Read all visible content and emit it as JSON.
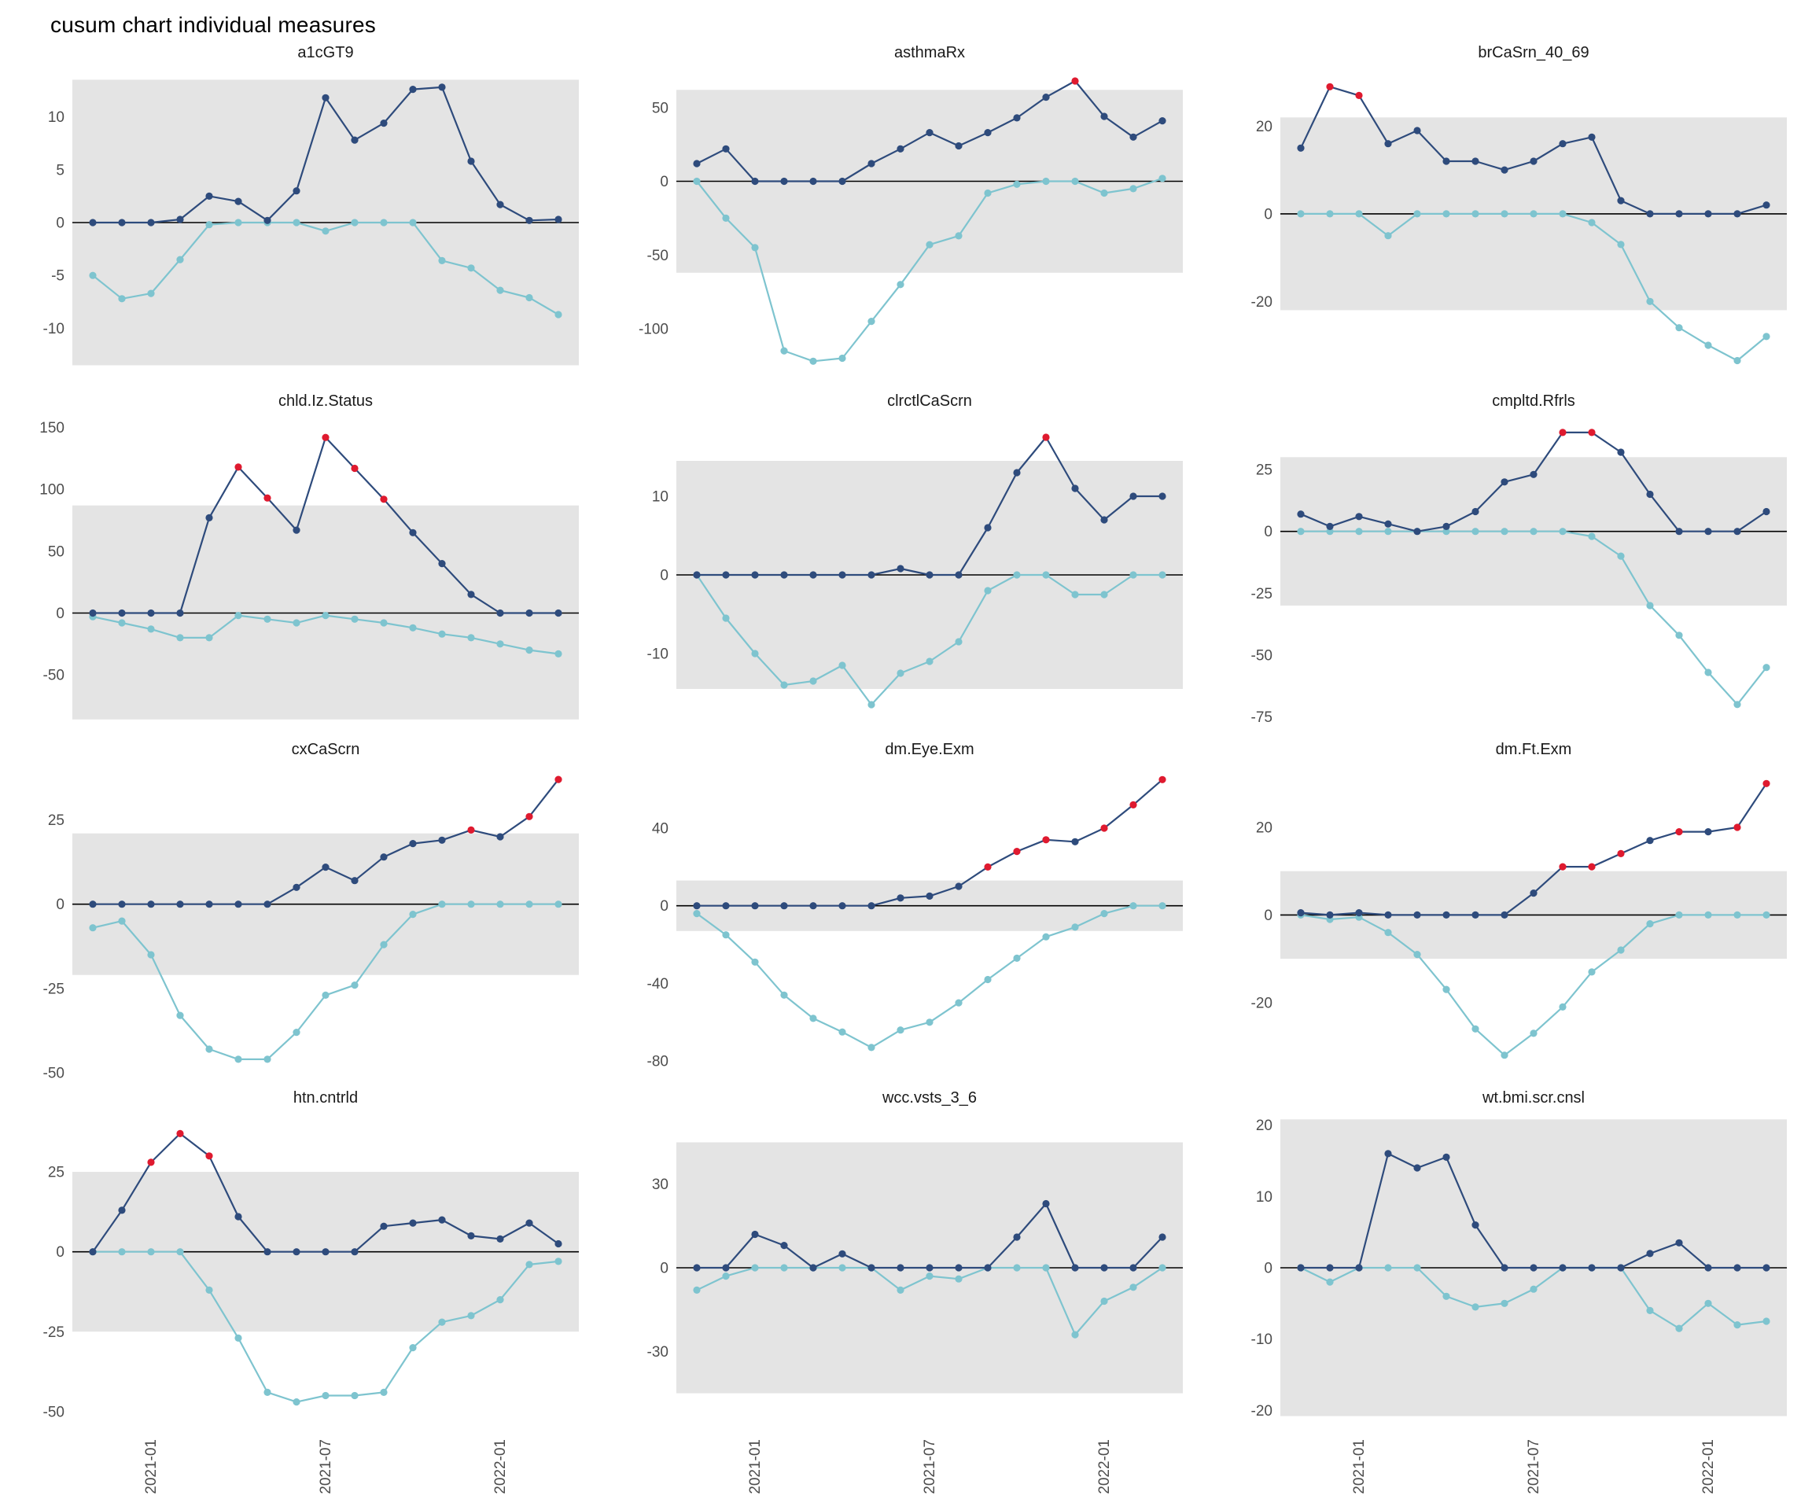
{
  "title": "cusum chart  individual measures",
  "colors": {
    "navy": "#2E4B7C",
    "teal": "#7EC4CF",
    "red": "#DF1A2F",
    "band": "#E4E4E4",
    "zero_line": "#000000",
    "axis_text": "#4D4D4D"
  },
  "x_axis": {
    "tick_labels": [
      "2021-01",
      "2021-07",
      "2022-01"
    ],
    "tick_indices": [
      2,
      8,
      14
    ],
    "n_points": 17
  },
  "chart_data": [
    {
      "type": "line",
      "title": "a1cGT9",
      "ylim": [
        -14.5,
        14.5
      ],
      "yticks": [
        10,
        5,
        0,
        -5,
        -10
      ],
      "control_band": [
        -13.5,
        13.5
      ],
      "series": [
        {
          "name": "cusum-upper",
          "color_key": "navy",
          "values": [
            0,
            0,
            0,
            0.3,
            2.5,
            2,
            0.2,
            3,
            11.8,
            7.8,
            9.4,
            12.6,
            12.8,
            5.8,
            1.7,
            0.2,
            0.3
          ],
          "out_of_control": []
        },
        {
          "name": "cusum-lower",
          "color_key": "teal",
          "values": [
            -5,
            -7.2,
            -6.7,
            -3.5,
            -0.2,
            0,
            0,
            0,
            -0.8,
            0,
            0,
            0,
            -3.6,
            -4.3,
            -6.4,
            -7.1,
            -8.7
          ],
          "out_of_control": []
        }
      ]
    },
    {
      "type": "line",
      "title": "asthmaRx",
      "ylim": [
        -132,
        76
      ],
      "yticks": [
        50,
        0,
        -50,
        -100
      ],
      "control_band": [
        -62,
        62
      ],
      "series": [
        {
          "name": "cusum-upper",
          "color_key": "navy",
          "values": [
            12,
            22,
            0,
            0,
            0,
            0,
            12,
            22,
            33,
            24,
            33,
            43,
            57,
            68,
            44,
            30,
            41
          ],
          "out_of_control": [
            13
          ]
        },
        {
          "name": "cusum-lower",
          "color_key": "teal",
          "values": [
            0,
            -25,
            -45,
            -115,
            -122,
            -120,
            -95,
            -70,
            -43,
            -37,
            -8,
            -2,
            0,
            0,
            -8,
            -5,
            2
          ],
          "out_of_control": []
        }
      ]
    },
    {
      "type": "line",
      "title": "brCaSrn_40_69",
      "ylim": [
        -37,
        33
      ],
      "yticks": [
        20,
        0,
        -20
      ],
      "control_band": [
        -22,
        22
      ],
      "series": [
        {
          "name": "cusum-upper",
          "color_key": "navy",
          "values": [
            15,
            29,
            27,
            16,
            19,
            12,
            12,
            10,
            12,
            16,
            17.5,
            3,
            0,
            0,
            0,
            0,
            2
          ],
          "out_of_control": [
            1,
            2
          ]
        },
        {
          "name": "cusum-lower",
          "color_key": "teal",
          "values": [
            0,
            0,
            0,
            -5,
            0,
            0,
            0,
            0,
            0,
            0,
            -2,
            -7,
            -20,
            -26,
            -30,
            -33.5,
            -28
          ],
          "out_of_control": []
        }
      ]
    },
    {
      "type": "line",
      "title": "chld.Iz.Status",
      "ylim": [
        -90,
        158
      ],
      "yticks": [
        150,
        100,
        50,
        0,
        -50
      ],
      "control_band": [
        -86,
        87
      ],
      "series": [
        {
          "name": "cusum-upper",
          "color_key": "navy",
          "values": [
            0,
            0,
            0,
            0,
            77,
            118,
            93,
            67,
            142,
            117,
            92,
            65,
            40,
            15,
            0,
            0,
            0
          ],
          "out_of_control": [
            5,
            6,
            8,
            9,
            10
          ]
        },
        {
          "name": "cusum-lower",
          "color_key": "teal",
          "values": [
            -3,
            -8,
            -13,
            -20,
            -20,
            -2,
            -5,
            -8,
            -2,
            -5,
            -8,
            -12,
            -17,
            -20,
            -25,
            -30,
            -33
          ],
          "out_of_control": []
        }
      ]
    },
    {
      "type": "line",
      "title": "clrctlCaScrn",
      "ylim": [
        -19,
        20
      ],
      "yticks": [
        10,
        0,
        -10
      ],
      "control_band": [
        -14.5,
        14.5
      ],
      "series": [
        {
          "name": "cusum-upper",
          "color_key": "navy",
          "values": [
            0,
            0,
            0,
            0,
            0,
            0,
            0,
            0.8,
            0,
            0,
            6,
            13,
            17.5,
            11,
            7,
            10,
            10
          ],
          "out_of_control": [
            12
          ]
        },
        {
          "name": "cusum-lower",
          "color_key": "teal",
          "values": [
            0,
            -5.5,
            -10,
            -14,
            -13.5,
            -11.5,
            -16.5,
            -12.5,
            -11,
            -8.5,
            -2,
            0,
            0,
            -2.5,
            -2.5,
            0,
            0
          ],
          "out_of_control": []
        }
      ]
    },
    {
      "type": "line",
      "title": "cmpltd.Rfrls",
      "ylim": [
        -78,
        46
      ],
      "yticks": [
        25,
        0,
        -25,
        -50,
        -75
      ],
      "control_band": [
        -30,
        30
      ],
      "series": [
        {
          "name": "cusum-upper",
          "color_key": "navy",
          "values": [
            7,
            2,
            6,
            3,
            0,
            2,
            8,
            20,
            23,
            40,
            40,
            32,
            15,
            0,
            0,
            0,
            8
          ],
          "out_of_control": [
            9,
            10
          ]
        },
        {
          "name": "cusum-lower",
          "color_key": "teal",
          "values": [
            0,
            0,
            0,
            0,
            0,
            0,
            0,
            0,
            0,
            0,
            -2,
            -10,
            -30,
            -42,
            -57,
            -70,
            -55
          ],
          "out_of_control": []
        }
      ]
    },
    {
      "type": "line",
      "title": "cxCaScrn",
      "ylim": [
        -50,
        41
      ],
      "yticks": [
        25,
        0,
        -25,
        -50
      ],
      "control_band": [
        -21,
        21
      ],
      "series": [
        {
          "name": "cusum-upper",
          "color_key": "navy",
          "values": [
            0,
            0,
            0,
            0,
            0,
            0,
            0,
            5,
            11,
            7,
            14,
            18,
            19,
            22,
            20,
            26,
            37
          ],
          "out_of_control": [
            13,
            15,
            16
          ]
        },
        {
          "name": "cusum-lower",
          "color_key": "teal",
          "values": [
            -7,
            -5,
            -15,
            -33,
            -43,
            -46,
            -46,
            -38,
            -27,
            -24,
            -12,
            -3,
            0,
            0,
            0,
            0,
            0
          ],
          "out_of_control": []
        }
      ]
    },
    {
      "type": "line",
      "title": "dm.Eye.Exm",
      "ylim": [
        -86,
        72
      ],
      "yticks": [
        40,
        0,
        -40,
        -80
      ],
      "control_band": [
        -13,
        13
      ],
      "series": [
        {
          "name": "cusum-upper",
          "color_key": "navy",
          "values": [
            0,
            0,
            0,
            0,
            0,
            0,
            0,
            4,
            5,
            10,
            20,
            28,
            34,
            33,
            40,
            52,
            65
          ],
          "out_of_control": [
            10,
            11,
            12,
            14,
            15,
            16
          ]
        },
        {
          "name": "cusum-lower",
          "color_key": "teal",
          "values": [
            -4,
            -15,
            -29,
            -46,
            -58,
            -65,
            -73,
            -64,
            -60,
            -50,
            -38,
            -27,
            -16,
            -11,
            -4,
            0,
            0
          ],
          "out_of_control": []
        }
      ]
    },
    {
      "type": "line",
      "title": "dm.Ft.Exm",
      "ylim": [
        -36,
        34
      ],
      "yticks": [
        20,
        0,
        -20
      ],
      "control_band": [
        -10,
        10
      ],
      "series": [
        {
          "name": "cusum-upper",
          "color_key": "navy",
          "values": [
            0.5,
            0,
            0.5,
            0,
            0,
            0,
            0,
            0,
            5,
            11,
            11,
            14,
            17,
            19,
            19,
            20,
            30
          ],
          "out_of_control": [
            9,
            10,
            11,
            13,
            15,
            16
          ]
        },
        {
          "name": "cusum-lower",
          "color_key": "teal",
          "values": [
            0,
            -1,
            -0.5,
            -4,
            -9,
            -17,
            -26,
            -32,
            -27,
            -21,
            -13,
            -8,
            -2,
            0,
            0,
            0,
            0
          ],
          "out_of_control": []
        }
      ]
    },
    {
      "type": "line",
      "title": "htn.cntrld",
      "ylim": [
        -53,
        43
      ],
      "yticks": [
        25,
        0,
        -25,
        -50
      ],
      "control_band": [
        -25,
        25
      ],
      "series": [
        {
          "name": "cusum-upper",
          "color_key": "navy",
          "values": [
            0,
            13,
            28,
            37,
            30,
            11,
            0,
            0,
            0,
            0,
            8,
            9,
            10,
            5,
            4,
            9,
            2.5
          ],
          "out_of_control": [
            2,
            3,
            4
          ]
        },
        {
          "name": "cusum-lower",
          "color_key": "teal",
          "values": [
            0,
            0,
            0,
            0,
            -12,
            -27,
            -44,
            -47,
            -45,
            -45,
            -44,
            -30,
            -22,
            -20,
            -15,
            -4,
            -3
          ],
          "out_of_control": []
        }
      ]
    },
    {
      "type": "line",
      "title": "wcc.vsts_3_6",
      "ylim": [
        -55,
        55
      ],
      "yticks": [
        30,
        0,
        -30
      ],
      "control_band": [
        -45,
        45
      ],
      "series": [
        {
          "name": "cusum-upper",
          "color_key": "navy",
          "values": [
            0,
            0,
            12,
            8,
            0,
            5,
            0,
            0,
            0,
            0,
            0,
            11,
            23,
            0,
            0,
            0,
            11
          ],
          "out_of_control": []
        },
        {
          "name": "cusum-lower",
          "color_key": "teal",
          "values": [
            -8,
            -3,
            0,
            0,
            0,
            0,
            0,
            -8,
            -3,
            -4,
            0,
            0,
            0,
            -24,
            -12,
            -7,
            0
          ],
          "out_of_control": []
        }
      ]
    },
    {
      "type": "line",
      "title": "wt.bmi.scr.cnsl",
      "ylim": [
        -21.5,
        21.5
      ],
      "yticks": [
        20,
        10,
        0,
        -10,
        -20
      ],
      "control_band": [
        -20.8,
        20.8
      ],
      "series": [
        {
          "name": "cusum-upper",
          "color_key": "navy",
          "values": [
            0,
            0,
            0,
            16,
            14,
            15.5,
            6,
            0,
            0,
            0,
            0,
            0,
            2,
            3.5,
            0,
            0,
            0
          ],
          "out_of_control": []
        },
        {
          "name": "cusum-lower",
          "color_key": "teal",
          "values": [
            0,
            -2,
            0,
            0,
            0,
            -4,
            -5.5,
            -5,
            -3,
            0,
            0,
            0,
            -6,
            -8.5,
            -5,
            -8,
            -7.5
          ],
          "out_of_control": []
        }
      ]
    }
  ]
}
